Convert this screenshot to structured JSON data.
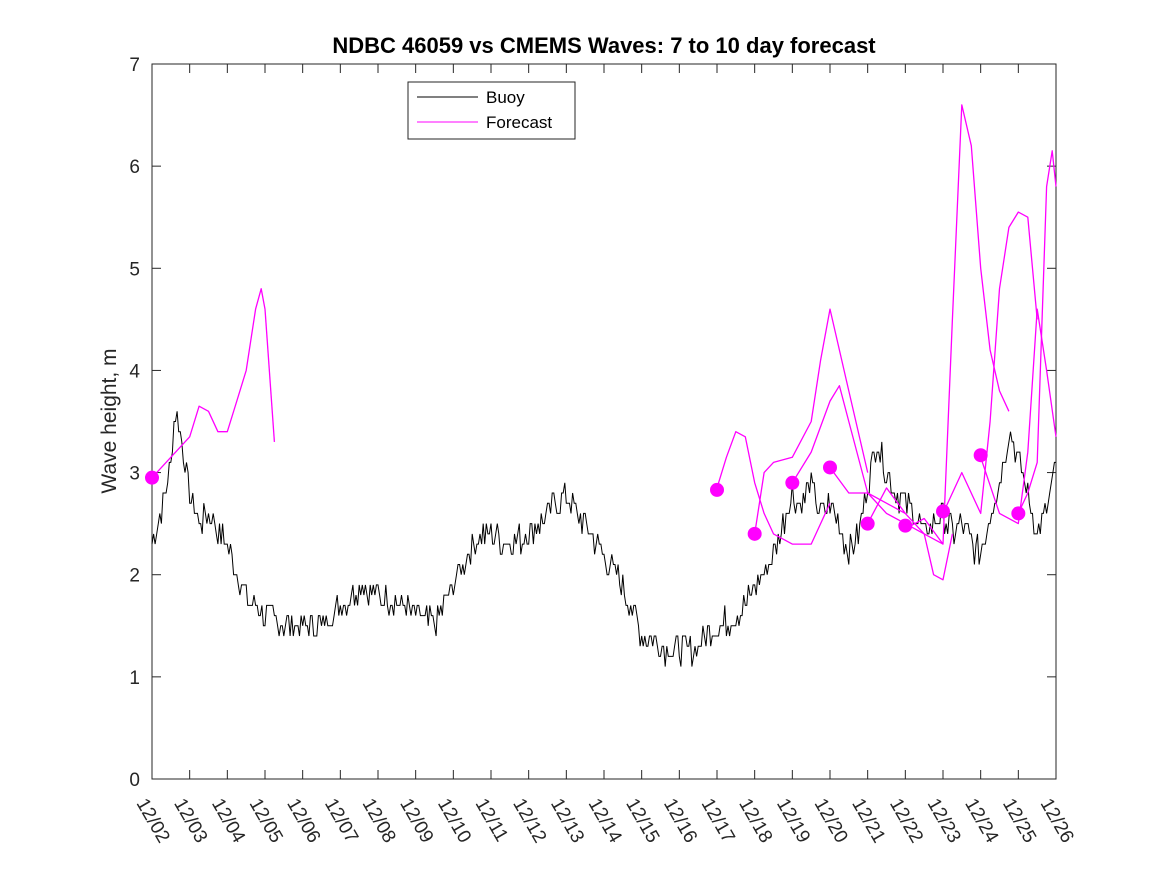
{
  "chart_data": {
    "type": "line",
    "title": "NDBC 46059 vs CMEMS Waves: 7 to 10 day forecast",
    "xlabel": "",
    "ylabel": "Wave height, m",
    "xlim": [
      0,
      24
    ],
    "ylim": [
      0,
      7
    ],
    "y_ticks": [
      "0",
      "1",
      "2",
      "3",
      "4",
      "5",
      "6",
      "7"
    ],
    "x_tick_labels": [
      "12/02",
      "12/03",
      "12/04",
      "12/05",
      "12/06",
      "12/07",
      "12/08",
      "12/09",
      "12/10",
      "12/11",
      "12/12",
      "12/13",
      "12/14",
      "12/15",
      "12/16",
      "12/17",
      "12/18",
      "12/19",
      "12/20",
      "12/21",
      "12/22",
      "12/23",
      "12/24",
      "12/25",
      "12/26"
    ],
    "grid": false,
    "legend": {
      "placement": "top-left",
      "entries": [
        "Buoy",
        "Forecast"
      ]
    },
    "colors": {
      "buoy": "#000000",
      "forecast": "#ff00ff"
    },
    "buoy": {
      "name": "Buoy",
      "x": [
        0.0,
        0.25,
        0.5,
        0.6,
        0.75,
        1.0,
        1.25,
        1.5,
        2.0,
        2.25,
        2.5,
        3.0,
        3.5,
        4.0,
        4.5,
        4.75,
        5.0,
        5.5,
        6.0,
        6.5,
        7.0,
        7.5,
        8.0,
        8.5,
        8.75,
        9.0,
        9.5,
        10.0,
        10.5,
        11.0,
        11.25,
        11.5,
        12.0,
        12.5,
        13.0,
        13.5,
        14.0,
        14.5,
        15.0,
        15.5,
        15.75,
        16.0,
        16.25,
        16.5,
        16.75,
        17.0,
        17.25,
        17.5,
        17.75,
        18.0,
        18.25,
        18.5,
        18.75,
        19.0,
        19.25,
        19.5,
        19.75,
        20.0,
        20.25,
        20.5,
        20.75,
        21.0,
        21.25,
        21.5,
        21.75,
        22.0,
        22.25,
        22.5,
        22.75,
        23.0,
        23.25,
        23.5,
        23.75,
        24.0
      ],
      "y": [
        2.3,
        2.6,
        3.1,
        3.6,
        3.4,
        2.8,
        2.5,
        2.6,
        2.3,
        2.0,
        1.8,
        1.6,
        1.5,
        1.5,
        1.5,
        1.6,
        1.7,
        1.9,
        1.8,
        1.75,
        1.6,
        1.5,
        1.9,
        2.3,
        2.4,
        2.4,
        2.3,
        2.4,
        2.6,
        2.8,
        2.6,
        2.5,
        2.2,
        1.9,
        1.4,
        1.3,
        1.25,
        1.3,
        1.5,
        1.6,
        1.7,
        1.9,
        2.0,
        2.2,
        2.5,
        2.8,
        2.7,
        2.9,
        2.6,
        2.7,
        2.5,
        2.2,
        2.4,
        2.9,
        3.3,
        3.0,
        2.8,
        2.7,
        2.6,
        2.4,
        2.5,
        2.6,
        2.4,
        2.5,
        2.3,
        2.2,
        2.6,
        2.9,
        3.4,
        3.1,
        2.8,
        2.4,
        2.6,
        3.1
      ]
    },
    "forecasts": [
      {
        "name": "Forecast",
        "x": [
          0.0,
          0.5,
          1.0,
          1.25,
          1.5,
          1.75,
          2.0,
          2.25,
          2.5,
          2.75,
          2.9,
          3.0
        ],
        "y": [
          2.95,
          3.15,
          3.35,
          3.65,
          3.6,
          3.4,
          3.4,
          3.7,
          4.0,
          4.6,
          4.8,
          4.6
        ]
      },
      {
        "name": "Forecast",
        "x": [
          3.0,
          3.25
        ],
        "y": [
          4.6,
          3.3
        ]
      },
      {
        "name": "Forecast",
        "x": [
          15.0,
          15.25,
          15.5,
          15.75,
          16.0,
          16.25,
          16.5,
          17.0,
          17.5,
          18.0
        ],
        "y": [
          2.85,
          3.15,
          3.4,
          3.35,
          2.9,
          2.6,
          2.4,
          2.3,
          2.3,
          2.7
        ]
      },
      {
        "name": "Forecast",
        "x": [
          16.0,
          16.25,
          16.5,
          17.0,
          17.5,
          17.75,
          18.0,
          18.5,
          19.0
        ],
        "y": [
          2.4,
          3.0,
          3.1,
          3.15,
          3.5,
          4.1,
          4.6,
          3.8,
          3.0
        ]
      },
      {
        "name": "Forecast",
        "x": [
          17.0,
          17.5,
          18.0,
          18.25,
          18.5,
          19.0,
          19.5,
          20.0
        ],
        "y": [
          2.9,
          3.2,
          3.7,
          3.85,
          3.5,
          2.8,
          2.7,
          2.6
        ]
      },
      {
        "name": "Forecast",
        "x": [
          18.0,
          18.5,
          19.0,
          19.5,
          20.0,
          20.5,
          21.0
        ],
        "y": [
          3.05,
          2.8,
          2.8,
          2.6,
          2.5,
          2.4,
          2.3
        ]
      },
      {
        "name": "Forecast",
        "x": [
          19.0,
          19.5,
          20.0,
          20.5,
          20.75,
          21.0,
          21.25
        ],
        "y": [
          2.5,
          2.85,
          2.6,
          2.4,
          2.0,
          1.95,
          2.4
        ]
      },
      {
        "name": "Forecast",
        "x": [
          20.0,
          20.5,
          21.0,
          21.25,
          21.5,
          21.75,
          22.0,
          22.25,
          22.5,
          22.75
        ],
        "y": [
          2.45,
          2.55,
          2.3,
          4.5,
          6.6,
          6.2,
          5.0,
          4.2,
          3.8,
          3.6
        ]
      },
      {
        "name": "Forecast",
        "x": [
          21.0,
          21.5,
          22.0,
          22.25,
          22.5,
          22.75,
          23.0,
          23.25,
          23.5
        ],
        "y": [
          2.6,
          3.0,
          2.6,
          3.5,
          4.8,
          5.4,
          5.55,
          5.5,
          4.5
        ]
      },
      {
        "name": "Forecast",
        "x": [
          22.0,
          22.5,
          23.0,
          23.25,
          23.5,
          23.75,
          24.0
        ],
        "y": [
          3.15,
          2.6,
          2.5,
          3.2,
          4.6,
          4.0,
          3.35
        ]
      },
      {
        "name": "Forecast",
        "x": [
          23.0,
          23.25,
          23.5,
          23.75,
          23.9,
          24.0
        ],
        "y": [
          2.6,
          2.8,
          3.1,
          5.8,
          6.15,
          5.8
        ]
      },
      {
        "name": "Forecast",
        "x": [
          0.0,
          1.0,
          2.0,
          3.0
        ],
        "y": [
          0.0,
          0.0,
          0.0,
          0.0
        ],
        "hidden": true
      }
    ],
    "markers": {
      "x": [
        0.0,
        15.0,
        16.0,
        17.0,
        18.0,
        19.0,
        20.0,
        21.0,
        22.0,
        23.0
      ],
      "y": [
        2.95,
        2.83,
        2.4,
        2.9,
        3.05,
        2.5,
        2.48,
        2.62,
        3.17,
        2.6
      ]
    }
  }
}
